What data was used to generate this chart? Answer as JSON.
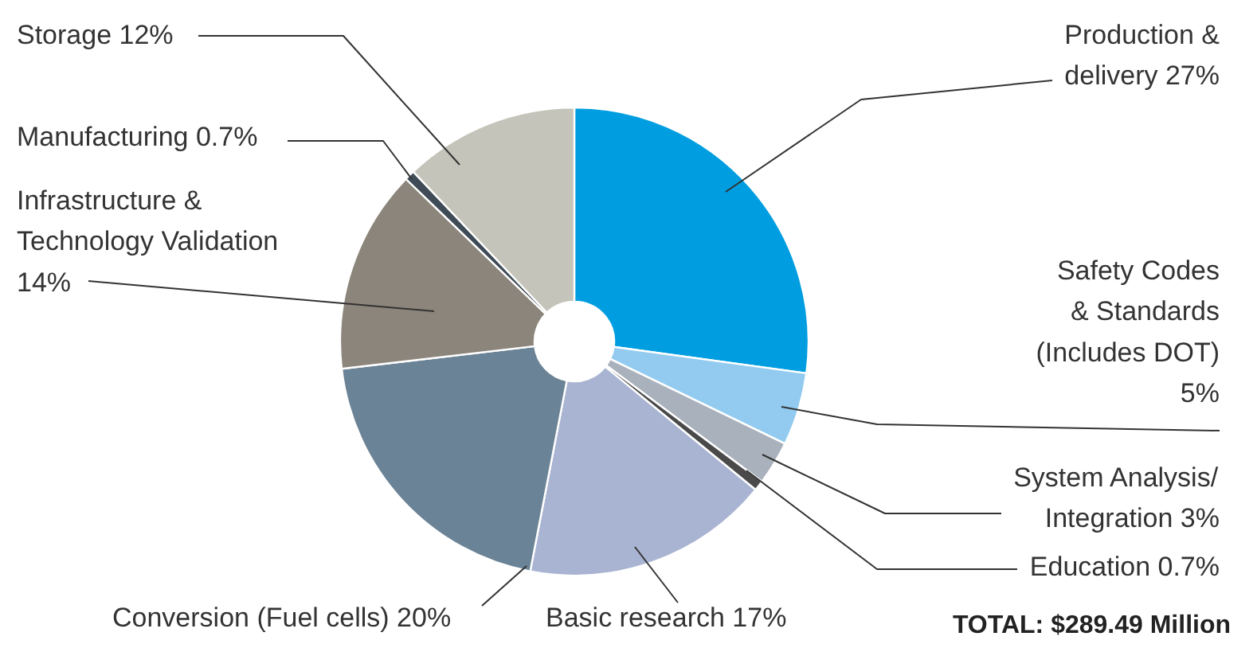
{
  "chart_data": {
    "type": "donut",
    "categories": [
      "Production &\ndelivery",
      "Safety Codes\n& Standards\n(Includes DOT)",
      "System Analysis/\nIntegration",
      "Education",
      "Basic research",
      "Conversion (Fuel cells)",
      "Infrastructure &\nTechnology Validation",
      "Manufacturing",
      "Storage"
    ],
    "values": [
      27,
      5,
      3,
      0.7,
      17,
      20,
      14,
      0.7,
      12
    ],
    "value_labels": [
      "27%",
      "5%",
      "3%",
      "0.7%",
      "17%",
      "20%",
      "14%",
      "0.7%",
      "12%"
    ],
    "colors": [
      "#009ee0",
      "#92cbef",
      "#a9b1bd",
      "#4a4a4a",
      "#a9b4d2",
      "#6b8396",
      "#8b857b",
      "#3f4b57",
      "#c5c4ba"
    ],
    "annotations": [
      "TOTAL: $289.49 Million"
    ]
  }
}
